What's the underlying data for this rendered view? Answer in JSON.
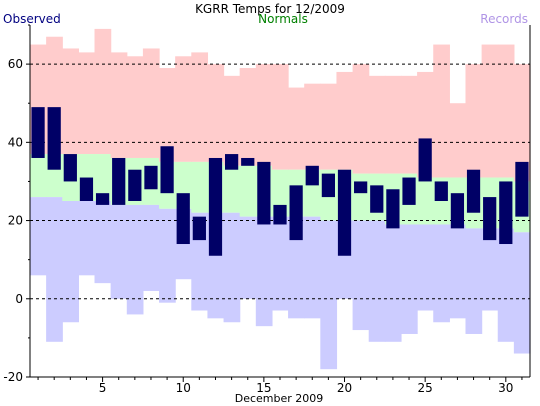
{
  "chart_data": {
    "type": "bar",
    "title": "KGRR Temps for 12/2009",
    "xlabel": "December 2009",
    "ylabel": "",
    "ylim": [
      -20,
      70
    ],
    "xlim": [
      0.5,
      31.5
    ],
    "y_ticks": [
      -20,
      0,
      20,
      40,
      60
    ],
    "x_ticks": [
      5,
      10,
      15,
      20,
      25,
      30
    ],
    "dashed_grid": [
      0,
      20,
      40,
      60
    ],
    "days": [
      1,
      2,
      3,
      4,
      5,
      6,
      7,
      8,
      9,
      10,
      11,
      12,
      13,
      14,
      15,
      16,
      17,
      18,
      19,
      20,
      21,
      22,
      23,
      24,
      25,
      26,
      27,
      28,
      29,
      30,
      31
    ],
    "legend": [
      {
        "label": "Observed",
        "color": "#000080"
      },
      {
        "label": "Normals",
        "color": "#008000"
      },
      {
        "label": "Records",
        "color": "#b095e6"
      }
    ],
    "series": [
      {
        "name": "Records",
        "kind": "record_range",
        "high": [
          65,
          67,
          64,
          63,
          69,
          63,
          62,
          64,
          59,
          62,
          63,
          60,
          57,
          59,
          60,
          60,
          54,
          55,
          55,
          58,
          60,
          57,
          57,
          57,
          58,
          65,
          50,
          60,
          65,
          65,
          60
        ],
        "low": [
          6,
          -11,
          -6,
          6,
          4,
          0,
          -4,
          2,
          -1,
          5,
          -3,
          -5,
          -6,
          0,
          -7,
          -3,
          -5,
          -5,
          -18,
          0,
          -8,
          -11,
          -11,
          -9,
          -3,
          -6,
          -5,
          -9,
          -3,
          -11,
          -14
        ]
      },
      {
        "name": "Normals",
        "kind": "normal_range",
        "high": [
          37,
          37,
          37,
          37,
          37,
          36,
          36,
          36,
          35,
          35,
          35,
          35,
          34,
          34,
          34,
          33,
          33,
          33,
          33,
          33,
          32,
          32,
          32,
          32,
          31,
          31,
          31,
          31,
          31,
          31,
          30
        ],
        "low": [
          26,
          26,
          25,
          25,
          25,
          24,
          24,
          24,
          23,
          23,
          22,
          22,
          22,
          21,
          21,
          21,
          21,
          21,
          20,
          20,
          20,
          20,
          19,
          19,
          19,
          19,
          19,
          18,
          18,
          18,
          17
        ]
      },
      {
        "name": "Observed",
        "kind": "observed_range",
        "high": [
          49,
          49,
          37,
          31,
          27,
          36,
          33,
          34,
          39,
          27,
          21,
          36,
          37,
          36,
          35,
          24,
          29,
          34,
          32,
          33,
          30,
          29,
          28,
          31,
          41,
          30,
          27,
          33,
          26,
          30,
          35
        ],
        "low": [
          36,
          33,
          30,
          25,
          24,
          24,
          25,
          28,
          27,
          14,
          15,
          11,
          33,
          34,
          19,
          19,
          15,
          29,
          26,
          11,
          27,
          22,
          18,
          24,
          30,
          25,
          18,
          22,
          15,
          14,
          21
        ]
      }
    ]
  },
  "colors": {
    "record": "#ffcccc",
    "normal": "#ccffcc",
    "low_record": "#ccccff",
    "observed": "#000066",
    "grid": "#000000",
    "axis": "#000000"
  }
}
